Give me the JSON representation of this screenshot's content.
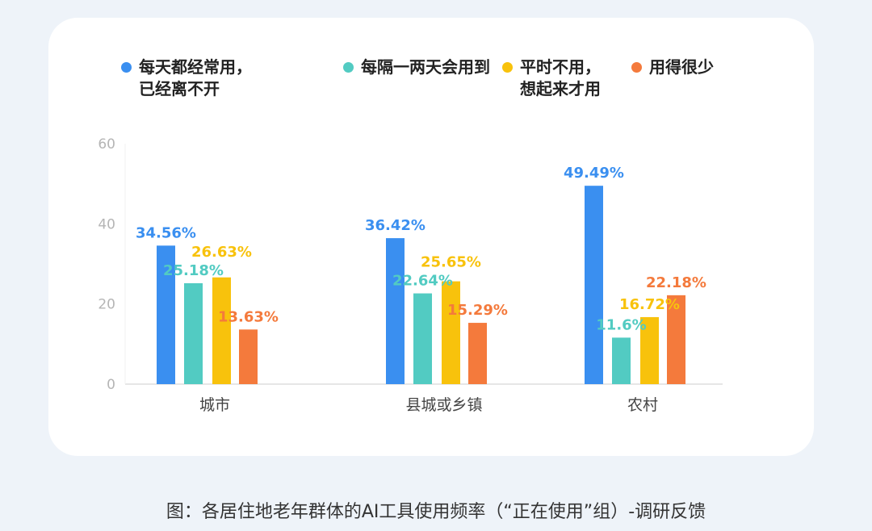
{
  "chart_data": {
    "type": "bar",
    "categories": [
      "城市",
      "县城或乡镇",
      "农村"
    ],
    "series": [
      {
        "name": "每天都经常用，\n已经离不开",
        "color": "#3a8ff0",
        "values": [
          34.56,
          36.42,
          49.49
        ],
        "labels": [
          "34.56%",
          "36.42%",
          "49.49%"
        ]
      },
      {
        "name": "每隔一两天会用到",
        "color": "#52cbc2",
        "values": [
          25.18,
          22.64,
          11.6
        ],
        "labels": [
          "25.18%",
          "22.64%",
          "11.6%"
        ]
      },
      {
        "name": "平时不用，\n想起来才用",
        "color": "#f8c20c",
        "values": [
          26.63,
          25.65,
          16.72
        ],
        "labels": [
          "26.63%",
          "25.65%",
          "16.72%"
        ]
      },
      {
        "name": "用得很少",
        "color": "#f47a3c",
        "values": [
          13.63,
          15.29,
          22.18
        ],
        "labels": [
          "13.63%",
          "15.29%",
          "22.18%"
        ]
      }
    ],
    "yticks": [
      "0",
      "20",
      "40",
      "60"
    ],
    "ylim": [
      0,
      60
    ],
    "legend": "top",
    "grid": false,
    "caption": "图：各居住地老年群体的AI工具使用频率（“正在使用”组）-调研反馈"
  }
}
